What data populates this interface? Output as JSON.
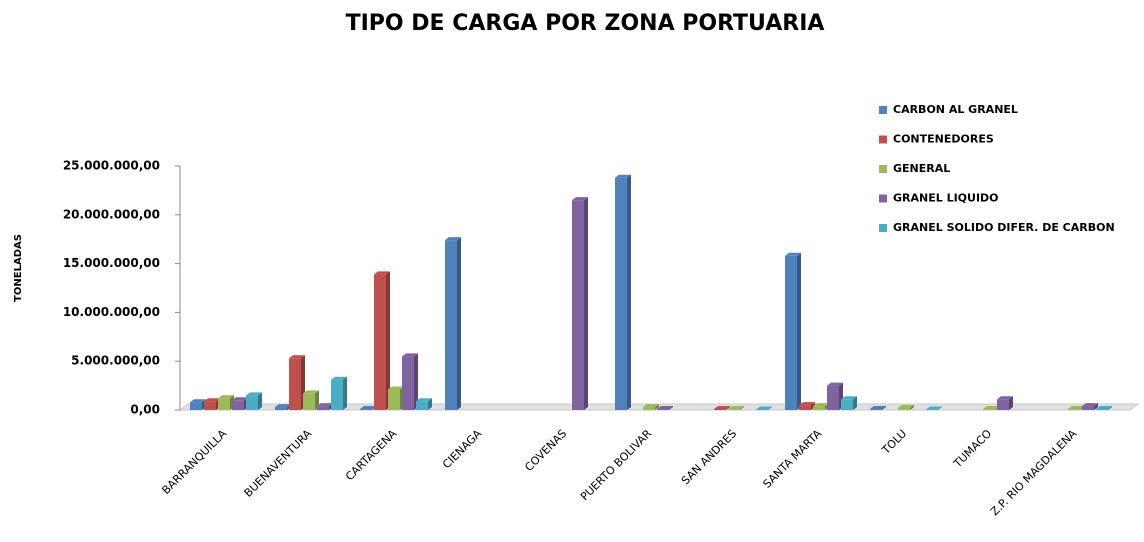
{
  "chart_data": {
    "type": "bar",
    "title": "TIPO DE CARGA POR ZONA PORTUARIA",
    "y_label": "TONELADAS",
    "categories": [
      "BARRANQUILLA",
      "BUENAVENTURA",
      "CARTAGENA",
      "CIENAGA",
      "COVENAS",
      "PUERTO BOLIVAR",
      "SAN ANDRES",
      "SANTA MARTA",
      "TOLU",
      "TUMACO",
      "Z.P. RIO MAGDALENA"
    ],
    "series": [
      {
        "name": "CARBON AL GRANEL",
        "color": "#4f81bd",
        "values": [
          800000,
          300000,
          100000,
          17400000,
          null,
          23800000,
          null,
          15800000,
          100000,
          null,
          null
        ]
      },
      {
        "name": "CONTENEDORES",
        "color": "#c0504d",
        "values": [
          900000,
          5300000,
          13900000,
          null,
          null,
          null,
          100000,
          500000,
          null,
          null,
          null
        ]
      },
      {
        "name": "GENERAL",
        "color": "#9bbb59",
        "values": [
          1200000,
          1700000,
          2100000,
          null,
          null,
          300000,
          100000,
          400000,
          200000,
          100000,
          100000
        ]
      },
      {
        "name": "GRANEL LIQUIDO",
        "color": "#8064a2",
        "values": [
          1000000,
          400000,
          5500000,
          null,
          21500000,
          100000,
          null,
          2500000,
          null,
          1100000,
          400000
        ]
      },
      {
        "name": "GRANEL SOLIDO DIFER. DE CARBON",
        "color": "#4bacc6",
        "values": [
          1500000,
          3100000,
          900000,
          null,
          null,
          null,
          50000,
          1100000,
          50000,
          null,
          100000
        ]
      }
    ],
    "ylim": [
      0,
      25000000
    ],
    "yticks": [
      {
        "value": 0,
        "label": "0,00"
      },
      {
        "value": 5000000,
        "label": "5.000.000,00"
      },
      {
        "value": 10000000,
        "label": "10.000.000,00"
      },
      {
        "value": 15000000,
        "label": "15.000.000,00"
      },
      {
        "value": 20000000,
        "label": "20.000.000,00"
      },
      {
        "value": 25000000,
        "label": "25.000.000,00"
      }
    ],
    "legend": "right"
  }
}
